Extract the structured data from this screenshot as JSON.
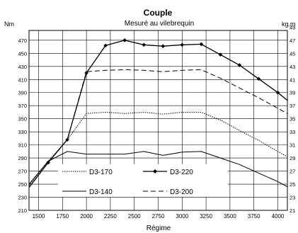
{
  "chart_data": {
    "type": "line",
    "title": "Couple",
    "subtitle": "Mesuré au vilebrequin",
    "xlabel": "Régime",
    "ylabel_left": "Nm",
    "ylabel_right": "kg.m",
    "xlim": [
      1400,
      4100
    ],
    "ylim": [
      210,
      485
    ],
    "x_ticks": [
      1500,
      1750,
      2000,
      2250,
      2500,
      2750,
      3000,
      3250,
      3500,
      3750,
      4000
    ],
    "y_ticks_left": [
      210,
      230,
      250,
      270,
      290,
      310,
      330,
      350,
      370,
      390,
      410,
      430,
      450,
      470
    ],
    "y_ticks_right": [
      "21",
      "23",
      "25",
      "27",
      "29",
      "31",
      "33",
      "35",
      "37",
      "39",
      "41",
      "43",
      "45",
      "47",
      "49"
    ],
    "grid": true,
    "legend_position": "inside-bottom",
    "series": [
      {
        "name": "D3-170",
        "style": "dotted",
        "x": [
          1400,
          1600,
          1800,
          2000,
          2200,
          2400,
          2600,
          2800,
          3000,
          3200,
          3400,
          3600,
          3800,
          4000,
          4100
        ],
        "y": [
          248,
          285,
          318,
          358,
          360,
          358,
          360,
          357,
          360,
          360,
          348,
          332,
          317,
          300,
          292
        ]
      },
      {
        "name": "D3-220",
        "style": "solid-diamond",
        "x": [
          1400,
          1600,
          1800,
          2000,
          2200,
          2400,
          2600,
          2800,
          3000,
          3200,
          3400,
          3600,
          3800,
          4000,
          4100
        ],
        "y": [
          245,
          283,
          318,
          420,
          462,
          470,
          463,
          461,
          463,
          464,
          448,
          432,
          411,
          390,
          378
        ]
      },
      {
        "name": "D3-140",
        "style": "solid",
        "x": [
          1400,
          1600,
          1800,
          2000,
          2200,
          2400,
          2600,
          2800,
          3000,
          3200,
          3400,
          3600,
          3800,
          4000,
          4100
        ],
        "y": [
          250,
          285,
          300,
          296,
          296,
          296,
          300,
          294,
          299,
          300,
          290,
          280,
          267,
          254,
          246
        ]
      },
      {
        "name": "D3-200",
        "style": "dashed",
        "x": [
          1400,
          1600,
          1800,
          2000,
          2200,
          2400,
          2600,
          2800,
          3000,
          3200,
          3400,
          3600,
          3800,
          4000,
          4100
        ],
        "y": [
          245,
          283,
          318,
          422,
          424,
          425,
          424,
          422,
          424,
          425,
          412,
          397,
          382,
          366,
          358
        ]
      }
    ]
  }
}
